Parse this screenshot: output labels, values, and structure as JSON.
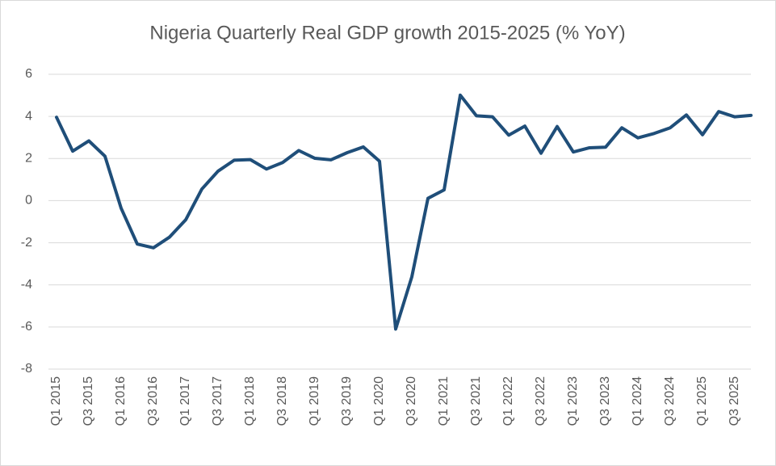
{
  "chart_data": {
    "type": "line",
    "title": "Nigeria Quarterly Real GDP growth 2015-2025 (% YoY)",
    "categories": [
      "Q1 2015",
      null,
      "Q3 2015",
      null,
      "Q1 2016",
      null,
      "Q3 2016",
      null,
      "Q1 2017",
      null,
      "Q3 2017",
      null,
      "Q1 2018",
      null,
      "Q3 2018",
      null,
      "Q1 2019",
      null,
      "Q3 2019",
      null,
      "Q1 2020",
      null,
      "Q3 2020",
      null,
      "Q1 2021",
      null,
      "Q3 2021",
      null,
      "Q1 2022",
      null,
      "Q3 2022",
      null,
      "Q1 2023",
      null,
      "Q3 2023",
      null,
      "Q1 2024",
      null,
      "Q3 2024",
      null,
      "Q1 2025",
      null,
      "Q3 2025",
      null
    ],
    "values": [
      3.96,
      2.35,
      2.84,
      2.11,
      -0.36,
      -2.06,
      -2.24,
      -1.73,
      -0.91,
      0.55,
      1.4,
      1.92,
      1.95,
      1.5,
      1.81,
      2.38,
      2.01,
      1.94,
      2.28,
      2.55,
      1.87,
      -6.1,
      -3.62,
      0.11,
      0.51,
      5.01,
      4.03,
      3.98,
      3.11,
      3.54,
      2.25,
      3.52,
      2.31,
      2.51,
      2.54,
      3.46,
      2.98,
      3.19,
      3.46,
      4.07,
      3.13,
      4.23,
      3.98,
      4.05
    ],
    "color": "#1f4e79",
    "ylim": [
      -8,
      6
    ],
    "yticks": [
      -8,
      -6,
      -4,
      -2,
      0,
      2,
      4,
      6
    ],
    "grid": true
  }
}
